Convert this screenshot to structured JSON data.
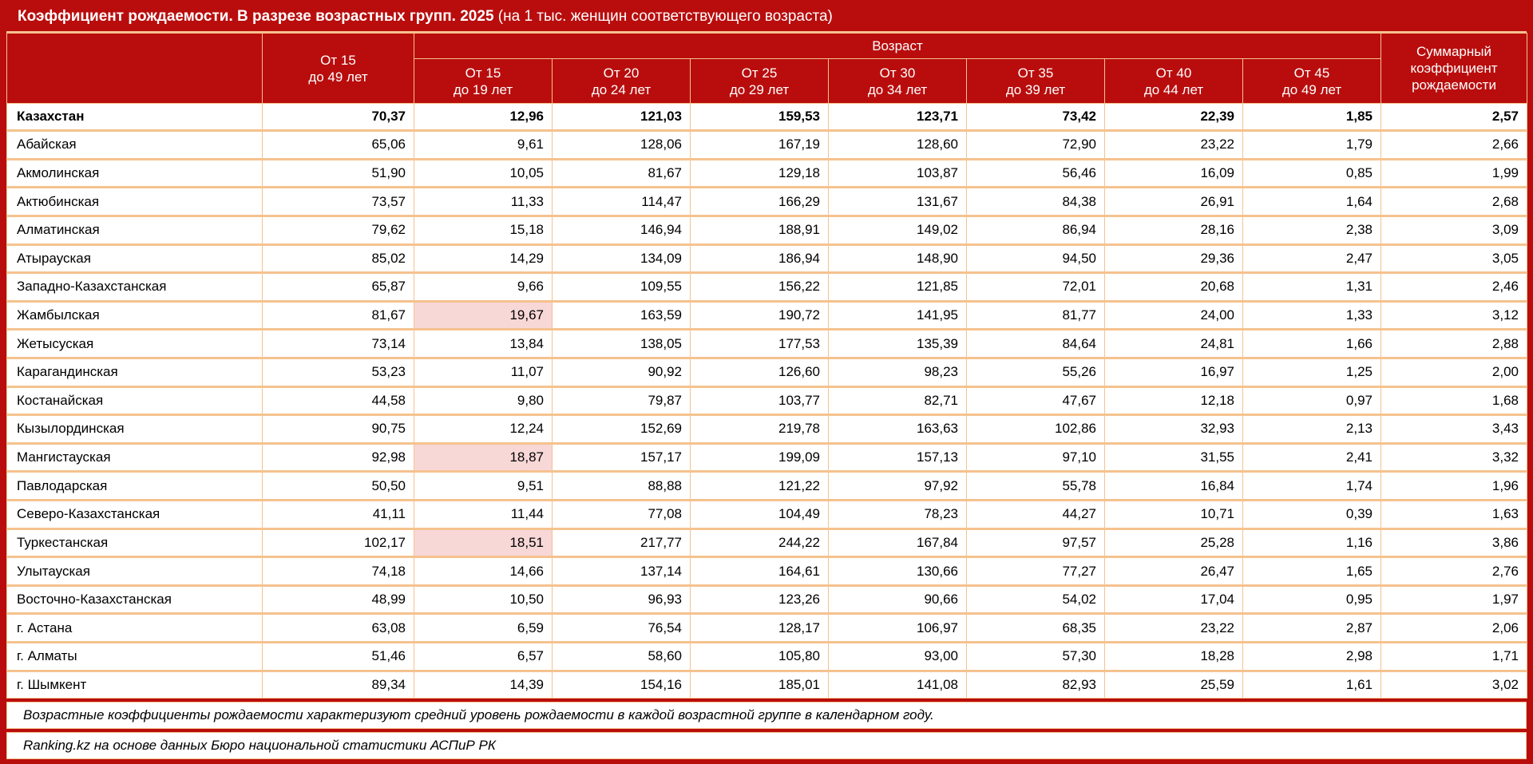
{
  "title": {
    "main": "Коэффициент рождаемости. В разрезе возрастных групп. 2025",
    "note": "(на 1 тыс. женщин соответствующего возраста)"
  },
  "header": {
    "region_label": "",
    "total_col": {
      "top": "От 15",
      "bottom": "до 49 лет"
    },
    "age_group_label": "Возраст",
    "age_columns": [
      {
        "top": "От 15",
        "bottom": "до 19 лет"
      },
      {
        "top": "От 20",
        "bottom": "до 24 лет"
      },
      {
        "top": "От 25",
        "bottom": "до 29 лет"
      },
      {
        "top": "От 30",
        "bottom": "до 34 лет"
      },
      {
        "top": "От 35",
        "bottom": "до 39 лет"
      },
      {
        "top": "От 40",
        "bottom": "до 44 лет"
      },
      {
        "top": "От 45",
        "bottom": "до 49 лет"
      }
    ],
    "tfr_col": [
      "Суммарный",
      "коэффициент",
      "рождаемости"
    ]
  },
  "chart_data": {
    "type": "table",
    "title": "Коэффициент рождаемости. В разрезе возрастных групп. 2025 (на 1 тыс. женщин соответствующего возраста)",
    "columns": [
      "",
      "От 15 до 49 лет",
      "От 15 до 19 лет",
      "От 20 до 24 лет",
      "От 25 до 29 лет",
      "От 30 до 34 лет",
      "От 35 до 39 лет",
      "От 40 до 44 лет",
      "От 45 до 49 лет",
      "Суммарный коэффициент рождаемости"
    ],
    "rows": [
      [
        "Казахстан",
        70.37,
        12.96,
        121.03,
        159.53,
        123.71,
        73.42,
        22.39,
        1.85,
        2.57
      ],
      [
        "Абайская",
        65.06,
        9.61,
        128.06,
        167.19,
        128.6,
        72.9,
        23.22,
        1.79,
        2.66
      ],
      [
        "Акмолинская",
        51.9,
        10.05,
        81.67,
        129.18,
        103.87,
        56.46,
        16.09,
        0.85,
        1.99
      ],
      [
        "Актюбинская",
        73.57,
        11.33,
        114.47,
        166.29,
        131.67,
        84.38,
        26.91,
        1.64,
        2.68
      ],
      [
        "Алматинская",
        79.62,
        15.18,
        146.94,
        188.91,
        149.02,
        86.94,
        28.16,
        2.38,
        3.09
      ],
      [
        "Атырауская",
        85.02,
        14.29,
        134.09,
        186.94,
        148.9,
        94.5,
        29.36,
        2.47,
        3.05
      ],
      [
        "Западно-Казахстанская",
        65.87,
        9.66,
        109.55,
        156.22,
        121.85,
        72.01,
        20.68,
        1.31,
        2.46
      ],
      [
        "Жамбылская",
        81.67,
        19.67,
        163.59,
        190.72,
        141.95,
        81.77,
        24.0,
        1.33,
        3.12
      ],
      [
        "Жетысуская",
        73.14,
        13.84,
        138.05,
        177.53,
        135.39,
        84.64,
        24.81,
        1.66,
        2.88
      ],
      [
        "Карагандинская",
        53.23,
        11.07,
        90.92,
        126.6,
        98.23,
        55.26,
        16.97,
        1.25,
        2.0
      ],
      [
        "Костанайская",
        44.58,
        9.8,
        79.87,
        103.77,
        82.71,
        47.67,
        12.18,
        0.97,
        1.68
      ],
      [
        "Кызылординская",
        90.75,
        12.24,
        152.69,
        219.78,
        163.63,
        102.86,
        32.93,
        2.13,
        3.43
      ],
      [
        "Мангистауская",
        92.98,
        18.87,
        157.17,
        199.09,
        157.13,
        97.1,
        31.55,
        2.41,
        3.32
      ],
      [
        "Павлодарская",
        50.5,
        9.51,
        88.88,
        121.22,
        97.92,
        55.78,
        16.84,
        1.74,
        1.96
      ],
      [
        "Северо-Казахстанская",
        41.11,
        11.44,
        77.08,
        104.49,
        78.23,
        44.27,
        10.71,
        0.39,
        1.63
      ],
      [
        "Туркестанская",
        102.17,
        18.51,
        217.77,
        244.22,
        167.84,
        97.57,
        25.28,
        1.16,
        3.86
      ],
      [
        "Улытауская",
        74.18,
        14.66,
        137.14,
        164.61,
        130.66,
        77.27,
        26.47,
        1.65,
        2.76
      ],
      [
        "Восточно-Казахстанская",
        48.99,
        10.5,
        96.93,
        123.26,
        90.66,
        54.02,
        17.04,
        0.95,
        1.97
      ],
      [
        "г. Астана",
        63.08,
        6.59,
        76.54,
        128.17,
        106.97,
        68.35,
        23.22,
        2.87,
        2.06
      ],
      [
        "г. Алматы",
        51.46,
        6.57,
        58.6,
        105.8,
        93.0,
        57.3,
        18.28,
        2.98,
        1.71
      ],
      [
        "г. Шымкент",
        89.34,
        14.39,
        154.16,
        185.01,
        141.08,
        82.93,
        25.59,
        1.61,
        3.02
      ]
    ]
  },
  "presentation": {
    "bold_rows": [
      0
    ],
    "highlight_cells": [
      [
        7,
        2
      ],
      [
        12,
        2
      ],
      [
        15,
        2
      ]
    ],
    "decimal_separator": ","
  },
  "footnotes": [
    "Возрастные коэффициенты рождаемости характеризуют средний уровень рождаемости в каждой возрастной группе в календарном году.",
    "Ranking.kz на основе данных Бюро национальной статистики АСПиР РК"
  ],
  "colors": {
    "header_bg": "#B90D0D",
    "grid_border": "#F5C28E",
    "highlight": "#F8D7D7",
    "header_text": "#FFFFFF",
    "body_text": "#000000"
  }
}
